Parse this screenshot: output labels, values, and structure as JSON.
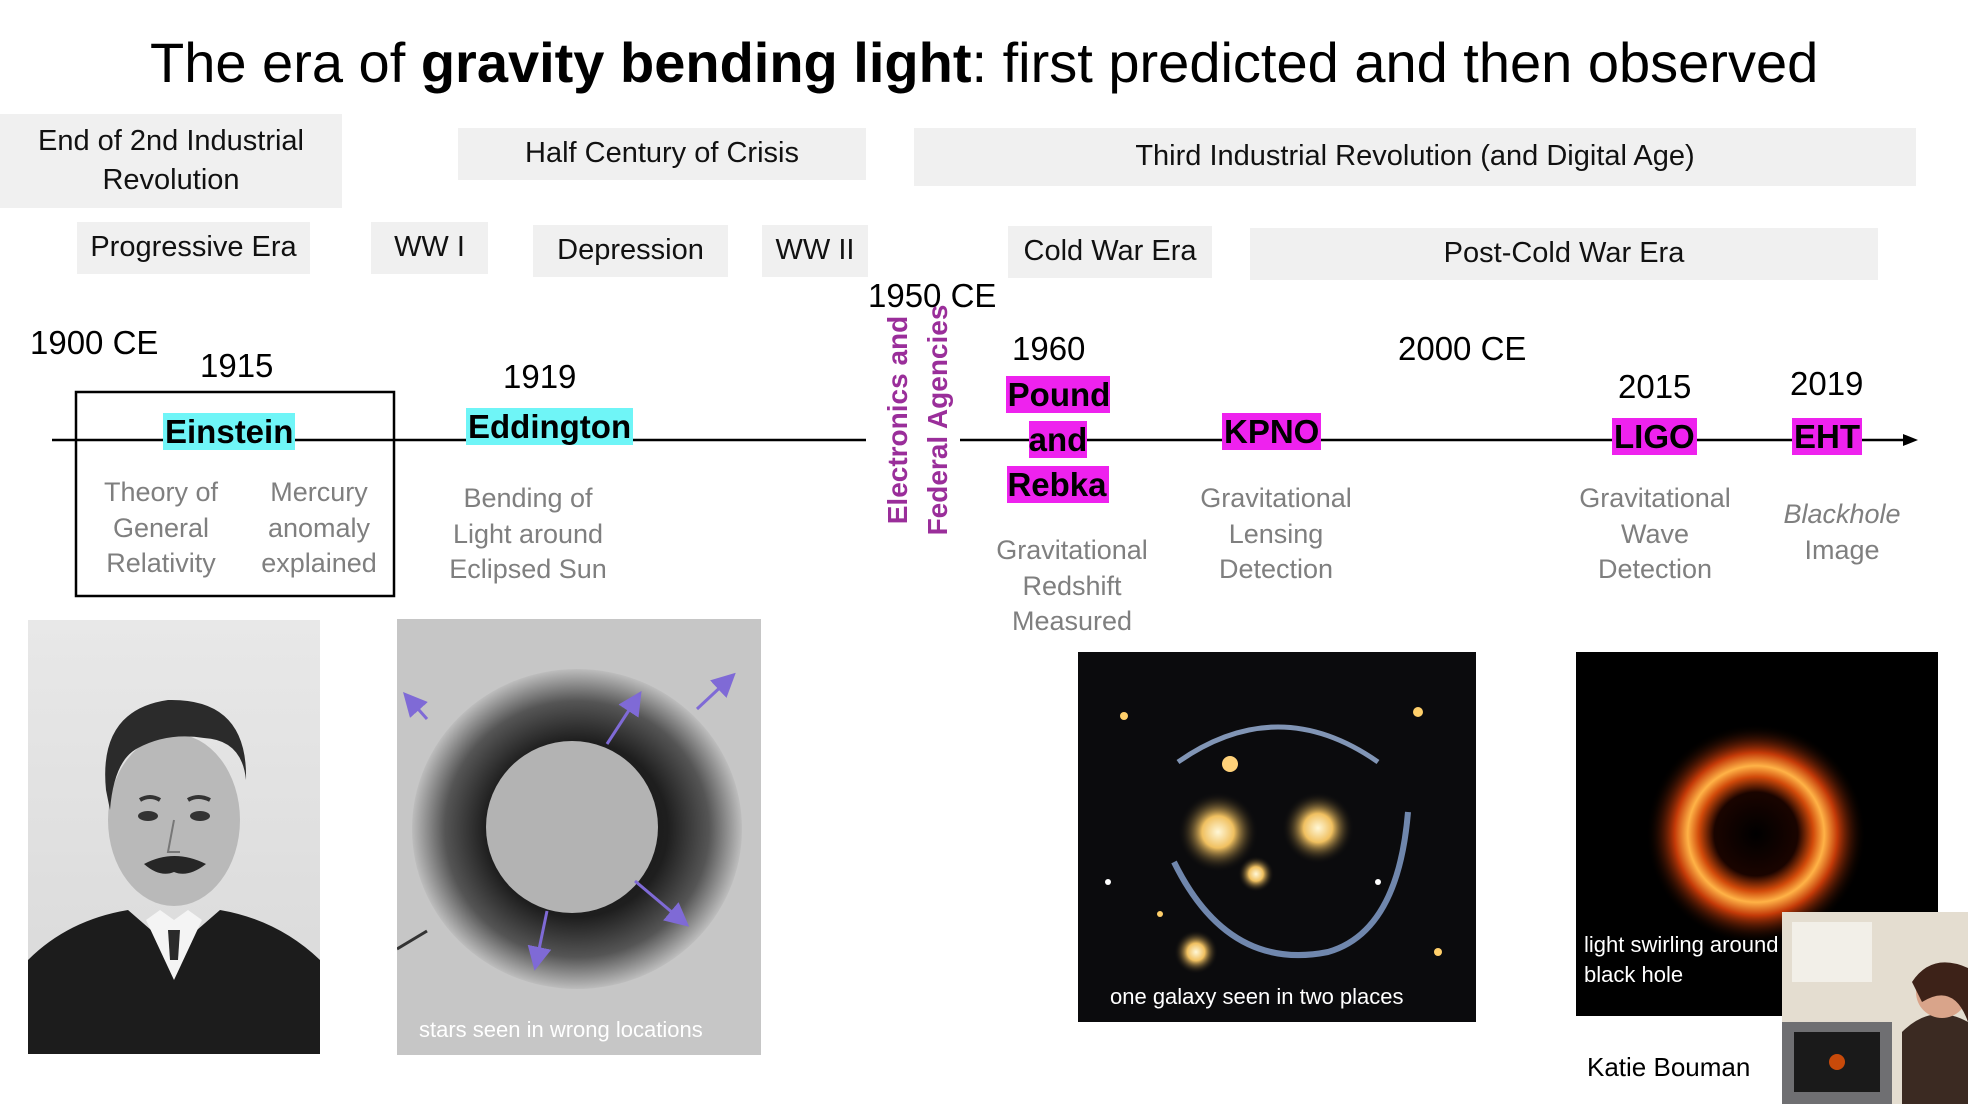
{
  "title": {
    "prefix": "The era of ",
    "bold": "gravity bending light",
    "suffix": ": first predicted and then observed"
  },
  "bands": {
    "industrial2": "End of 2nd Industrial Revolution",
    "crisis": "Half Century of Crisis",
    "industrial3": "Third Industrial Revolution (and Digital Age)",
    "progressive": "Progressive Era",
    "ww1": "WW I",
    "depression": "Depression",
    "ww2": "WW II",
    "coldwar": "Cold War Era",
    "postcoldwar": "Post-Cold War Era"
  },
  "years": {
    "y1900": "1900 CE",
    "y1915": "1915",
    "y1919": "1919",
    "y1950": "1950 CE",
    "y1960": "1960",
    "y2000": "2000 CE",
    "y2015": "2015",
    "y2019": "2019"
  },
  "vertical_note": {
    "line1": "Electronics and",
    "line2": "Federal  Agencies"
  },
  "events": {
    "einstein": "Einstein",
    "eddington": "Eddington",
    "pound": "Pound and Rebka",
    "kpno": "KPNO",
    "ligo": "LIGO",
    "eht": "EHT"
  },
  "descriptions": {
    "relativity": "Theory of General Relativity",
    "mercury": "Mercury anomaly explained",
    "bending": "Bending of Light around Eclipsed Sun",
    "redshift": "Gravitational Redshift Measured",
    "lensing": "Gravitational Lensing Detection",
    "wave": "Gravitational Wave Detection",
    "blackhole_italic": "Blackhole",
    "blackhole_rest": "Image"
  },
  "captions": {
    "eclipse": "stars seen in wrong locations",
    "galaxy": "one galaxy seen in two places",
    "blackhole": "light swirling around black hole",
    "bouman": "Katie Bouman"
  },
  "colors": {
    "cyan_highlight": "#6ff5f7",
    "magenta_highlight": "#ee22ee",
    "vertical_text": "#9a2e9a",
    "band_gray": "#f0f0f0"
  }
}
